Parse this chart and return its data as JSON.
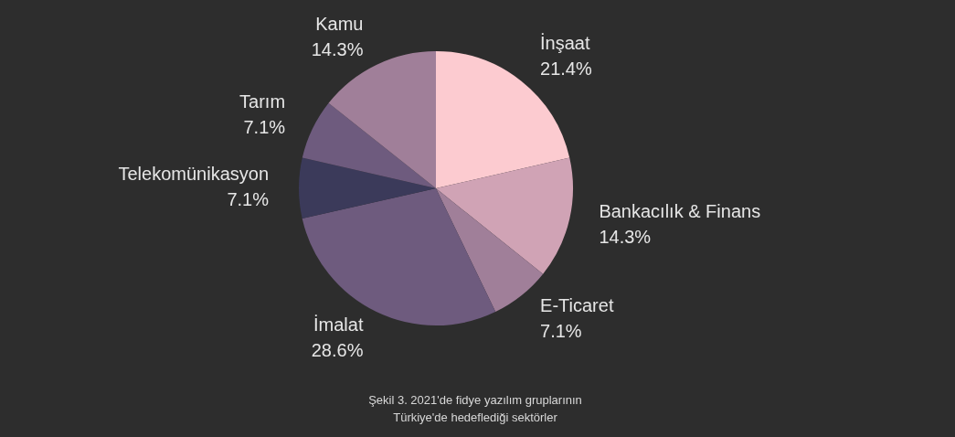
{
  "chart_data": {
    "type": "pie",
    "categories": [
      "İnşaat",
      "Bankacılık & Finans",
      "E-Ticaret",
      "İmalat",
      "Telekomünikasyon",
      "Tarım",
      "Kamu"
    ],
    "values": [
      21.4,
      14.3,
      7.1,
      28.6,
      7.1,
      7.1,
      14.3
    ],
    "colors": [
      "#fccbd0",
      "#d0a3b5",
      "#a07f99",
      "#6e5b7e",
      "#3b3a5a",
      "#6e5b7e",
      "#a07f99"
    ],
    "value_labels": [
      "21.4%",
      "14.3%",
      "7.1%",
      "28.6%",
      "7.1%",
      "7.1%",
      "14.3%"
    ],
    "legend": false,
    "annotations": [
      "Şekil 3. 2021'de fidye yazılım gruplarının Türkiye'de hedeflediği sektörler"
    ]
  }
}
